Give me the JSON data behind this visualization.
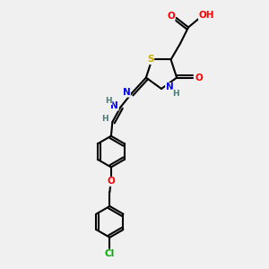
{
  "bg_color": "#f0f0f0",
  "bond_color": "#000000",
  "atom_colors": {
    "O": "#ff0000",
    "N": "#0000ff",
    "S": "#ccaa00",
    "Cl": "#00aa00",
    "C": "#000000",
    "H": "#4a7a7a"
  },
  "figsize": [
    3.0,
    3.0
  ],
  "dpi": 100
}
